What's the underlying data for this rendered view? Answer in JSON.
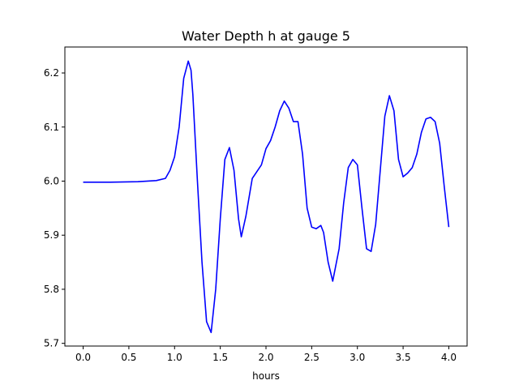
{
  "chart_data": {
    "type": "line",
    "title": "Water Depth h at gauge 5",
    "xlabel": "hours",
    "ylabel": "",
    "xlim": [
      -0.2,
      4.2
    ],
    "ylim": [
      5.695,
      6.248
    ],
    "xticks": [
      "0.0",
      "0.5",
      "1.0",
      "1.5",
      "2.0",
      "2.5",
      "3.0",
      "3.5",
      "4.0"
    ],
    "yticks": [
      "5.7",
      "5.8",
      "5.9",
      "6.0",
      "6.1",
      "6.2"
    ],
    "grid": false,
    "legend": "none",
    "series": [
      {
        "color": "#0000ff",
        "x": [
          0.0,
          0.3,
          0.6,
          0.8,
          0.9,
          0.95,
          1.0,
          1.05,
          1.1,
          1.15,
          1.18,
          1.2,
          1.25,
          1.3,
          1.35,
          1.4,
          1.45,
          1.5,
          1.55,
          1.6,
          1.65,
          1.7,
          1.73,
          1.78,
          1.85,
          1.95,
          2.0,
          2.05,
          2.1,
          2.15,
          2.2,
          2.25,
          2.3,
          2.35,
          2.4,
          2.45,
          2.5,
          2.55,
          2.6,
          2.63,
          2.68,
          2.73,
          2.8,
          2.85,
          2.9,
          2.95,
          3.0,
          3.05,
          3.1,
          3.15,
          3.2,
          3.25,
          3.3,
          3.35,
          3.4,
          3.45,
          3.5,
          3.55,
          3.6,
          3.65,
          3.7,
          3.75,
          3.8,
          3.85,
          3.9,
          3.95,
          4.0
        ],
        "y": [
          5.998,
          5.998,
          5.999,
          6.001,
          6.005,
          6.02,
          6.045,
          6.1,
          6.19,
          6.222,
          6.205,
          6.16,
          6.0,
          5.85,
          5.74,
          5.72,
          5.8,
          5.93,
          6.04,
          6.062,
          6.02,
          5.93,
          5.897,
          5.935,
          6.005,
          6.03,
          6.06,
          6.075,
          6.1,
          6.13,
          6.148,
          6.135,
          6.11,
          6.11,
          6.05,
          5.95,
          5.915,
          5.912,
          5.918,
          5.905,
          5.85,
          5.815,
          5.875,
          5.96,
          6.025,
          6.04,
          6.03,
          5.95,
          5.875,
          5.87,
          5.92,
          6.02,
          6.12,
          6.158,
          6.13,
          6.04,
          6.008,
          6.015,
          6.025,
          6.05,
          6.09,
          6.115,
          6.118,
          6.11,
          6.07,
          5.99,
          5.915
        ]
      }
    ]
  }
}
